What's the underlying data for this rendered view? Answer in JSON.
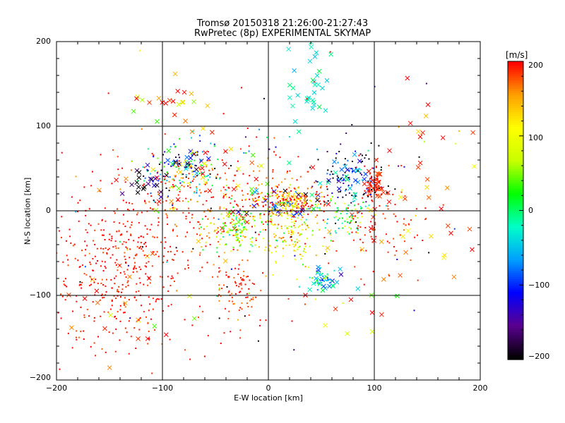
{
  "title_line1": "Tromsø 20150318 21:26:00-21:27:43",
  "title_line2": "RwPretec (8p) EXPERIMENTAL SKYMAP",
  "chart_data": {
    "type": "scatter",
    "title": "Tromsø 20150318 21:26:00-21:27:43",
    "subtitle": "RwPretec (8p) EXPERIMENTAL SKYMAP",
    "xlabel": "E-W location [km]",
    "ylabel": "N-S location [km]",
    "xlim": [
      -200,
      200
    ],
    "ylim": [
      -200,
      200
    ],
    "xticks": [
      "−200",
      "−100",
      "0",
      "100",
      "200"
    ],
    "yticks": [
      "200",
      "100",
      "0",
      "−100",
      "−200"
    ],
    "grid": true,
    "colorbar": {
      "unit": "[m/s]",
      "range": [
        -200,
        200
      ],
      "ticks": [
        "200",
        "100",
        "0",
        "−100",
        "−200"
      ],
      "colormap": [
        "#000000",
        "#5a0090",
        "#0000ff",
        "#00a0ff",
        "#00ffc8",
        "#00ff00",
        "#c8ff00",
        "#ffff00",
        "#ffa000",
        "#ff0000"
      ]
    },
    "marker_types": [
      "x",
      "dot"
    ],
    "clusters": [
      {
        "marker": "x",
        "cx": 35,
        "cy": 150,
        "sx": 10,
        "sy": 25,
        "n": 35,
        "v": -20,
        "sv": 20
      },
      {
        "marker": "x",
        "cx": -90,
        "cy": 135,
        "sx": 25,
        "sy": 10,
        "n": 20,
        "v": 150,
        "sv": 80
      },
      {
        "marker": "x",
        "cx": -80,
        "cy": 60,
        "sx": 10,
        "sy": 6,
        "n": 18,
        "v": -150,
        "sv": 80
      },
      {
        "marker": "x",
        "cx": -115,
        "cy": 30,
        "sx": 15,
        "sy": 10,
        "n": 20,
        "v": -180,
        "sv": 40
      },
      {
        "marker": "x",
        "cx": 80,
        "cy": 40,
        "sx": 12,
        "sy": 10,
        "n": 28,
        "v": -60,
        "sv": 40
      },
      {
        "marker": "x",
        "cx": 100,
        "cy": 30,
        "sx": 4,
        "sy": 15,
        "n": 20,
        "v": 190,
        "sv": 10
      },
      {
        "marker": "x",
        "cx": 20,
        "cy": 10,
        "sx": 18,
        "sy": 10,
        "n": 30,
        "v": -150,
        "sv": 80
      },
      {
        "marker": "x",
        "cx": 50,
        "cy": -80,
        "sx": 8,
        "sy": 8,
        "n": 18,
        "v": -30,
        "sv": 60
      },
      {
        "marker": "x",
        "cx": 130,
        "cy": -20,
        "sx": 50,
        "sy": 50,
        "n": 40,
        "v": 180,
        "sv": 40
      },
      {
        "marker": "x",
        "cx": -120,
        "cy": -100,
        "sx": 40,
        "sy": 40,
        "n": 25,
        "v": 170,
        "sv": 60
      },
      {
        "marker": "x",
        "cx": -50,
        "cy": 40,
        "sx": 40,
        "sy": 30,
        "n": 45,
        "v": 150,
        "sv": 80
      },
      {
        "marker": "x",
        "cx": 150,
        "cy": 70,
        "sx": 30,
        "sy": 30,
        "n": 12,
        "v": 180,
        "sv": 30
      },
      {
        "marker": "x",
        "cx": 70,
        "cy": -130,
        "sx": 40,
        "sy": 30,
        "n": 12,
        "v": 100,
        "sv": 80
      },
      {
        "marker": "dot",
        "cx": -140,
        "cy": -70,
        "sx": 35,
        "sy": 45,
        "n": 420,
        "v": 195,
        "sv": 10
      },
      {
        "marker": "dot",
        "cx": -30,
        "cy": -95,
        "sx": 15,
        "sy": 20,
        "n": 90,
        "v": 190,
        "sv": 15
      },
      {
        "marker": "dot",
        "cx": -40,
        "cy": 15,
        "sx": 50,
        "sy": 30,
        "n": 300,
        "v": 185,
        "sv": 25
      },
      {
        "marker": "dot",
        "cx": 20,
        "cy": 10,
        "sx": 15,
        "sy": 10,
        "n": 220,
        "v": 160,
        "sv": 70
      },
      {
        "marker": "dot",
        "cx": 20,
        "cy": -30,
        "sx": 15,
        "sy": 20,
        "n": 140,
        "v": 100,
        "sv": 40
      },
      {
        "marker": "dot",
        "cx": -30,
        "cy": -20,
        "sx": 15,
        "sy": 12,
        "n": 140,
        "v": 60,
        "sv": 50
      },
      {
        "marker": "dot",
        "cx": -80,
        "cy": 50,
        "sx": 20,
        "sy": 15,
        "n": 140,
        "v": -60,
        "sv": 120
      },
      {
        "marker": "dot",
        "cx": 70,
        "cy": -5,
        "sx": 15,
        "sy": 10,
        "n": 80,
        "v": 20,
        "sv": 60
      },
      {
        "marker": "dot",
        "cx": 80,
        "cy": 40,
        "sx": 15,
        "sy": 20,
        "n": 100,
        "v": -160,
        "sv": 60
      },
      {
        "marker": "dot",
        "cx": 100,
        "cy": 30,
        "sx": 4,
        "sy": 10,
        "n": 60,
        "v": 195,
        "sv": 5
      },
      {
        "marker": "dot",
        "cx": 110,
        "cy": -20,
        "sx": 20,
        "sy": 25,
        "n": 80,
        "v": 190,
        "sv": 10
      },
      {
        "marker": "dot",
        "cx": 50,
        "cy": -80,
        "sx": 6,
        "sy": 6,
        "n": 40,
        "v": -40,
        "sv": 40
      },
      {
        "marker": "dot",
        "cx": 0,
        "cy": 0,
        "sx": 120,
        "sy": 90,
        "n": 150,
        "v": 50,
        "sv": 200
      }
    ]
  }
}
